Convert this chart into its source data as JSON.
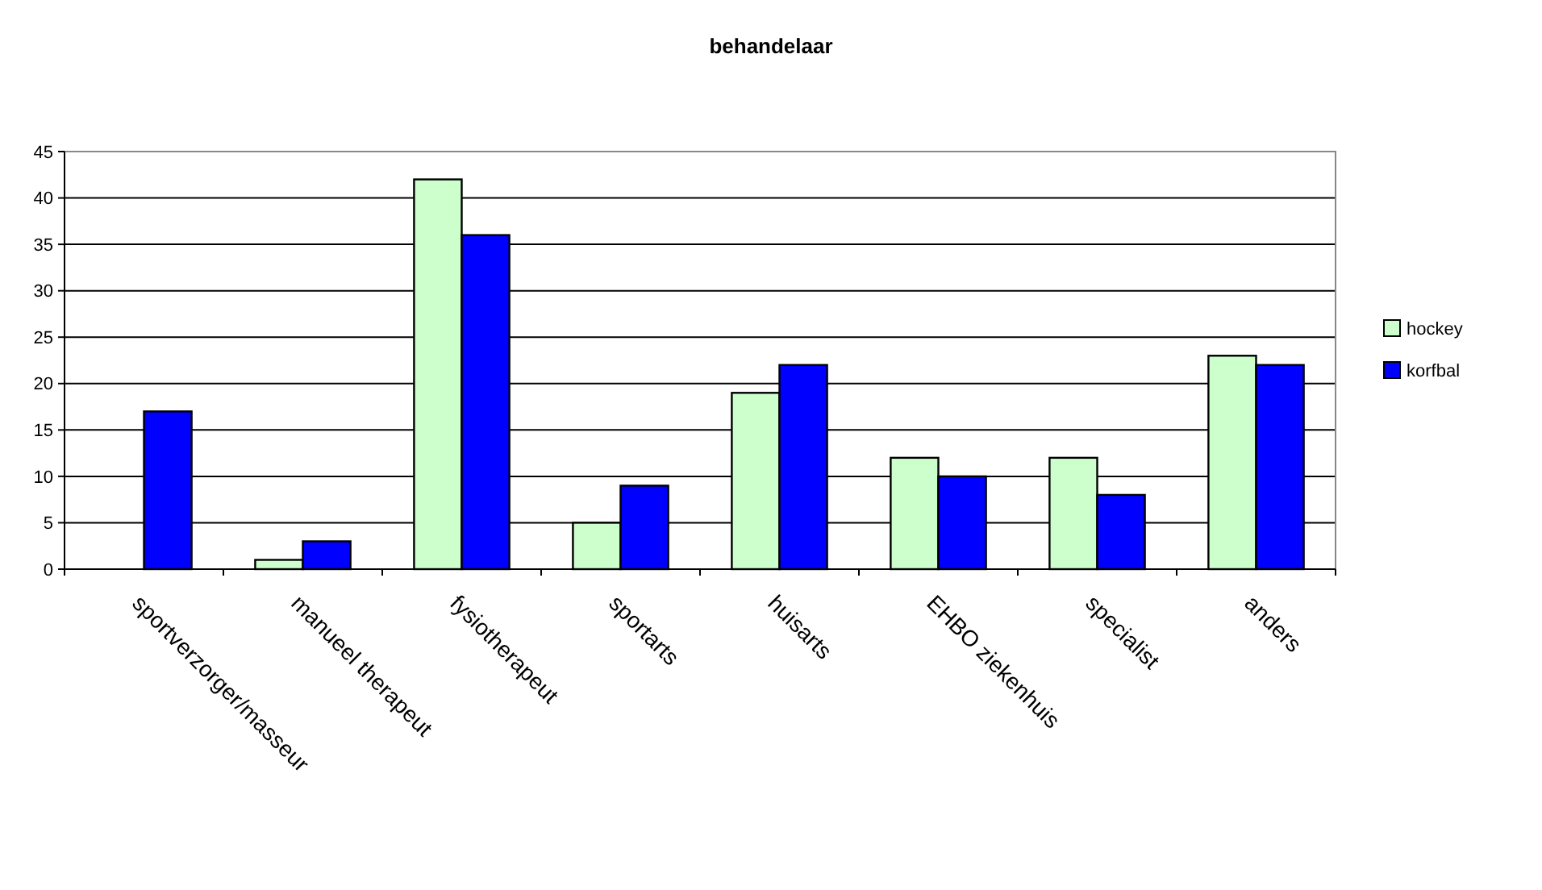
{
  "chart_data": {
    "type": "bar",
    "title": "behandelaar",
    "categories": [
      "sportverzorger/masseur",
      "manueel therapeut",
      "fysiotherapeut",
      "sportarts",
      "huisarts",
      "EHBO ziekenhuis",
      "specialist",
      "anders"
    ],
    "series": [
      {
        "name": "hockey",
        "color": "#ccffcc",
        "values": [
          0,
          1,
          42,
          5,
          19,
          12,
          12,
          23
        ]
      },
      {
        "name": "korfbal",
        "color": "#0000ff",
        "values": [
          17,
          3,
          36,
          9,
          22,
          10,
          8,
          22
        ]
      }
    ],
    "ylim": [
      0,
      45
    ],
    "yticks": [
      0,
      5,
      10,
      15,
      20,
      25,
      30,
      35,
      40,
      45
    ],
    "grid": "y",
    "legend": "right"
  }
}
